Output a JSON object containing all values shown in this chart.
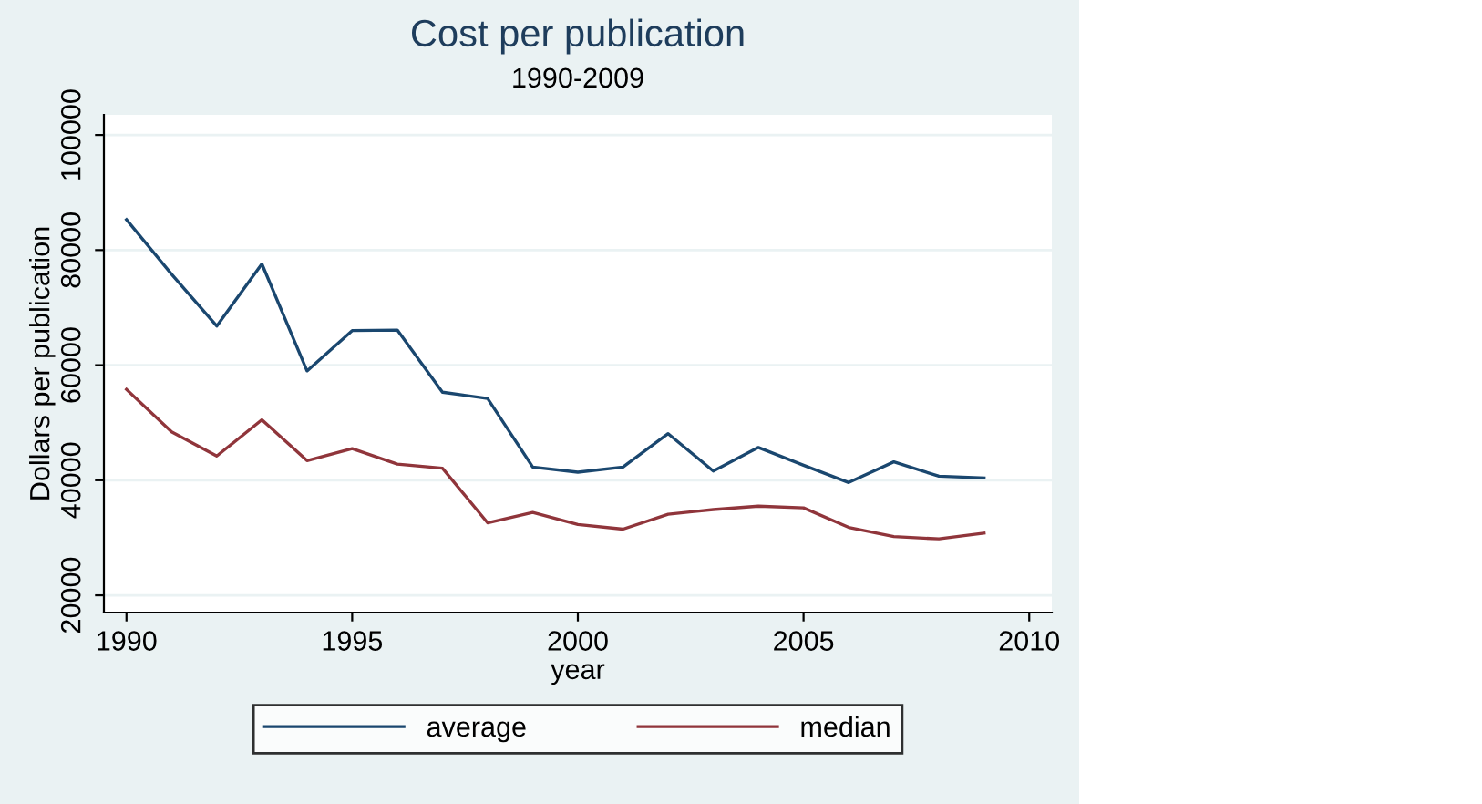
{
  "chart_data": {
    "type": "line",
    "title": "Cost per publication",
    "subtitle": "1990-2009",
    "xlabel": "year",
    "ylabel": "Dollars per publication",
    "x": [
      1990,
      1991,
      1992,
      1993,
      1994,
      1995,
      1996,
      1997,
      1998,
      1999,
      2000,
      2001,
      2002,
      2003,
      2004,
      2005,
      2006,
      2007,
      2008,
      2009
    ],
    "series": [
      {
        "name": "average",
        "color": "#1a476f",
        "values": [
          85300,
          75800,
          66800,
          77600,
          59000,
          66000,
          66100,
          55300,
          54200,
          42300,
          41400,
          42300,
          48100,
          41600,
          45700,
          42600,
          39600,
          43200,
          40700,
          40400
        ]
      },
      {
        "name": "median",
        "color": "#90353b",
        "values": [
          55800,
          48400,
          44200,
          50500,
          43400,
          45500,
          42800,
          42100,
          32600,
          34400,
          32300,
          31500,
          34100,
          34900,
          35500,
          35200,
          31800,
          30200,
          29800,
          30800
        ]
      }
    ],
    "xlim": [
      1989.5,
      2010.5
    ],
    "xticks": [
      1990,
      1995,
      2000,
      2005,
      2010
    ],
    "ylim": [
      17000,
      103500
    ],
    "yticks": [
      20000,
      40000,
      60000,
      80000,
      100000
    ],
    "grid": "y",
    "legend": "bottom",
    "marker": "none",
    "line_style": "solid"
  }
}
